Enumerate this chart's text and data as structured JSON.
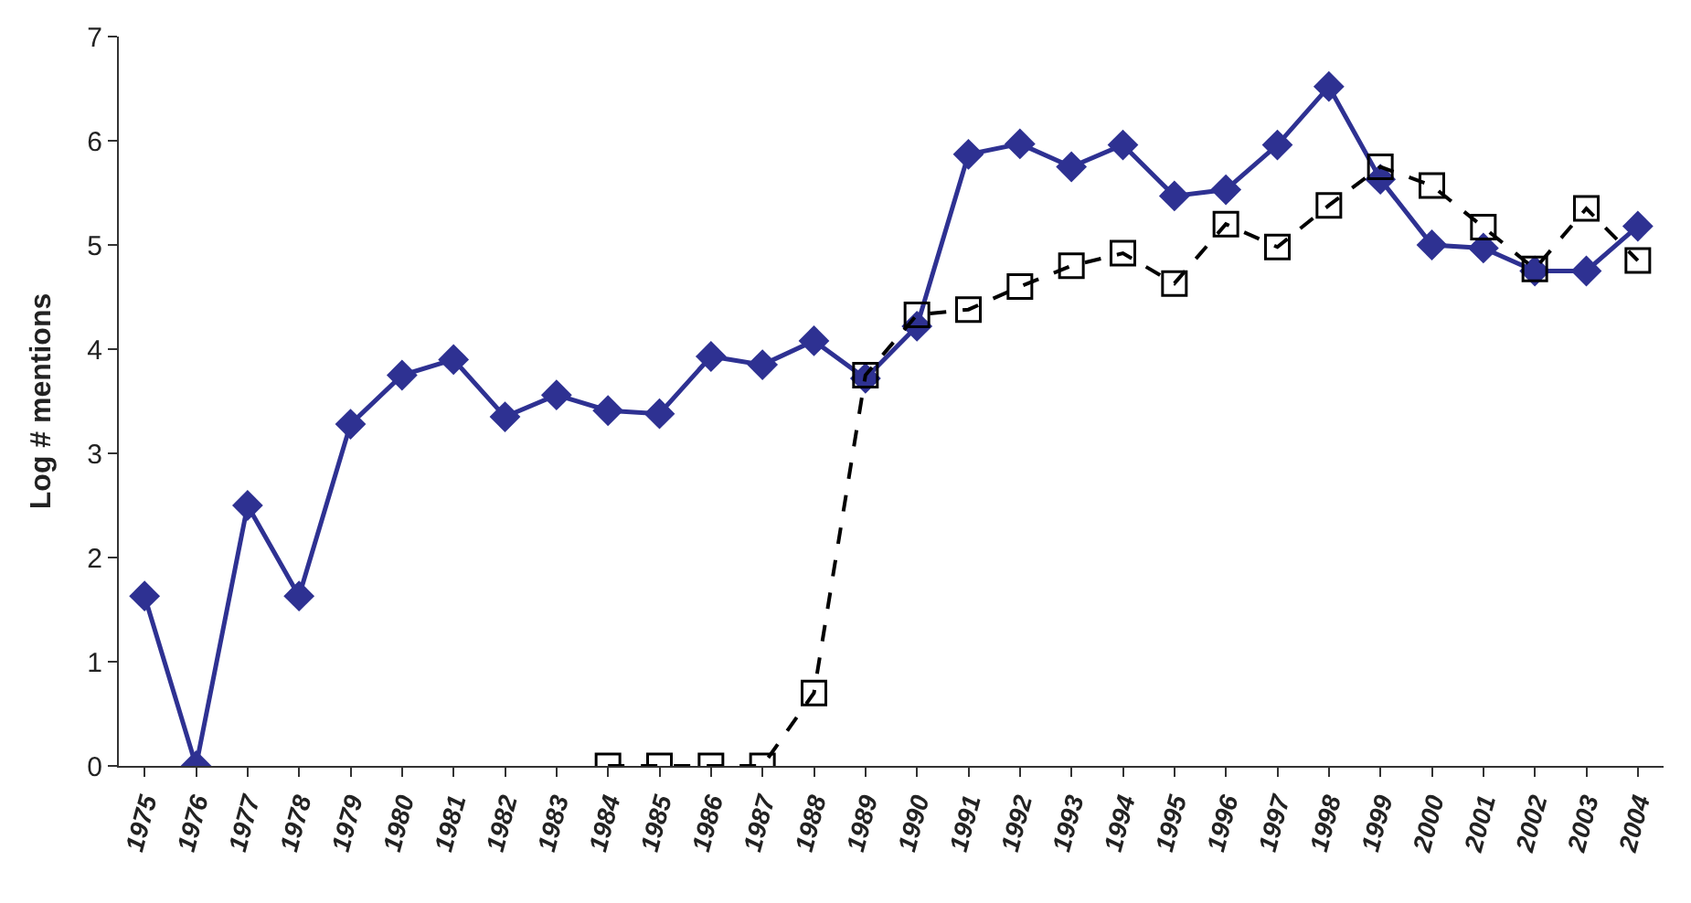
{
  "chart_data": {
    "type": "line",
    "ylabel": "Log # mentions",
    "categories": [
      "1975",
      "1976",
      "1977",
      "1978",
      "1979",
      "1980",
      "1981",
      "1982",
      "1983",
      "1984",
      "1985",
      "1986",
      "1987",
      "1988",
      "1989",
      "1990",
      "1991",
      "1992",
      "1993",
      "1994",
      "1995",
      "1996",
      "1997",
      "1998",
      "1999",
      "2000",
      "2001",
      "2002",
      "2003",
      "2004"
    ],
    "series": [
      {
        "color": "#000000",
        "marker": "square",
        "line_style": "dashed",
        "values": [
          null,
          null,
          null,
          null,
          null,
          null,
          null,
          null,
          null,
          0,
          0,
          0,
          0,
          0.7,
          3.75,
          4.33,
          4.38,
          4.6,
          4.8,
          4.92,
          4.63,
          5.2,
          4.98,
          5.38,
          5.75,
          5.57,
          5.17,
          4.77,
          5.35,
          4.85
        ]
      },
      {
        "color": "#2e3192",
        "marker": "diamond",
        "line_style": "solid",
        "values": [
          1.63,
          0,
          2.5,
          1.63,
          3.28,
          3.75,
          3.9,
          3.35,
          3.56,
          3.41,
          3.38,
          3.93,
          3.85,
          4.08,
          3.72,
          4.22,
          5.87,
          5.97,
          5.75,
          5.96,
          5.47,
          5.53,
          5.96,
          6.52,
          5.63,
          5.0,
          4.97,
          4.75,
          4.75,
          5.18
        ]
      }
    ],
    "ylim": [
      0,
      7
    ],
    "yticks": [
      0,
      1,
      2,
      3,
      4,
      5,
      6,
      7
    ],
    "grid": false
  }
}
